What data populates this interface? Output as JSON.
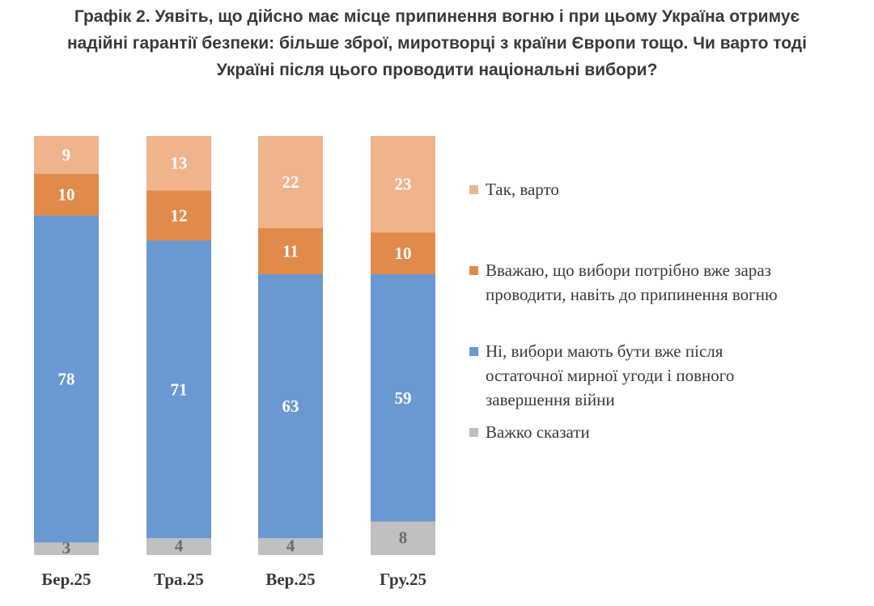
{
  "chart_data": {
    "type": "bar",
    "stacked": true,
    "title_lines": [
      "Графік 2. Уявіть, що дійсно має місце припинення вогню і при цьому Україна отримує",
      "надійні гарантії безпеки: більше зброї, миротворці з країни Європи тощо. Чи варто тоді",
      "Україні після цього проводити національні вибори?"
    ],
    "categories": [
      "Бер.25",
      "Тра.25",
      "Вер.25",
      "Гру.25"
    ],
    "series": [
      {
        "name": "Важко сказати",
        "color": "#c0c0c0",
        "label_color": "#6b6b6b",
        "values": [
          3,
          4,
          4,
          8
        ]
      },
      {
        "name": "Ні, вибори мають бути вже після остаточної мирної угоди і повного завершення війни",
        "legend_lines": [
          "Ні, вибори мають бути вже після",
          "остаточної мирної угоди і повного",
          "завершення війни"
        ],
        "color": "#6a98d2",
        "label_color": "#ffffff",
        "values": [
          78,
          71,
          63,
          59
        ]
      },
      {
        "name": "Вважаю, що вибори потрібно вже зараз проводити, навіть до припинення вогню",
        "legend_lines": [
          "Вважаю, що вибори потрібно вже зараз",
          "проводити, навіть до припинення вогню"
        ],
        "color": "#e08a4c",
        "label_color": "#ffffff",
        "values": [
          10,
          12,
          11,
          10
        ]
      },
      {
        "name": "Так, варто",
        "color": "#efb48c",
        "label_color": "#ffffff",
        "values": [
          9,
          13,
          22,
          23
        ]
      }
    ],
    "legend_order": [
      "Так, варто",
      "Вважаю, що вибори потрібно вже зараз проводити, навіть до припинення вогню",
      "Ні, вибори мають бути вже після остаточної мирної угоди і повного завершення війни",
      "Важко сказати"
    ],
    "ylim": [
      0,
      100
    ],
    "xlabel": "",
    "ylabel": "",
    "legend_position": "right"
  }
}
